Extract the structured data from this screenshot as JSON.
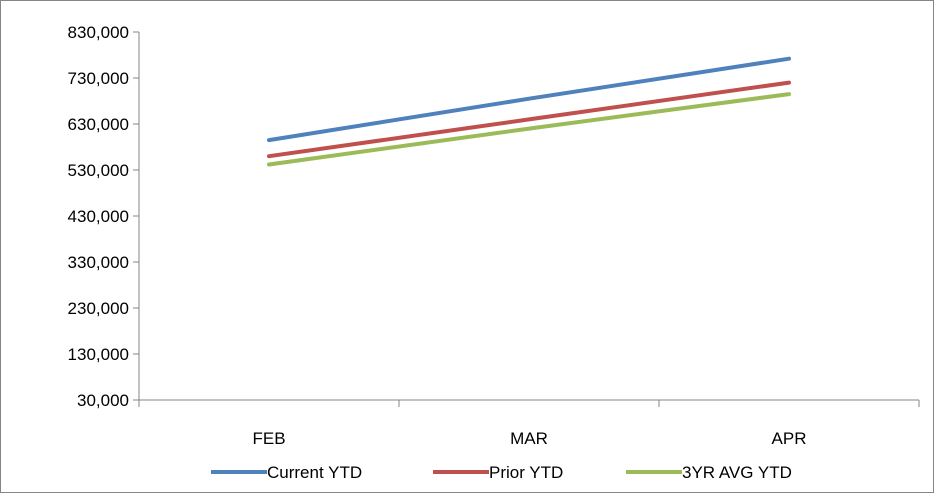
{
  "chart_data": {
    "type": "line",
    "categories": [
      "FEB",
      "MAR",
      "APR"
    ],
    "y_tick_labels": [
      "30,000",
      "130,000",
      "230,000",
      "330,000",
      "430,000",
      "530,000",
      "630,000",
      "730,000",
      "830,000"
    ],
    "ylim": [
      30000,
      830000
    ],
    "y_tick_step": 100000,
    "grid": false,
    "legend_position": "bottom",
    "series": [
      {
        "name": "Current YTD",
        "color": "#4F81BD",
        "values": [
          595000,
          685000,
          772000
        ]
      },
      {
        "name": "Prior YTD",
        "color": "#C0504D",
        "values": [
          560000,
          640000,
          720000
        ]
      },
      {
        "name": "3YR AVG YTD",
        "color": "#9BBB59",
        "values": [
          542000,
          620000,
          695000
        ]
      }
    ]
  }
}
